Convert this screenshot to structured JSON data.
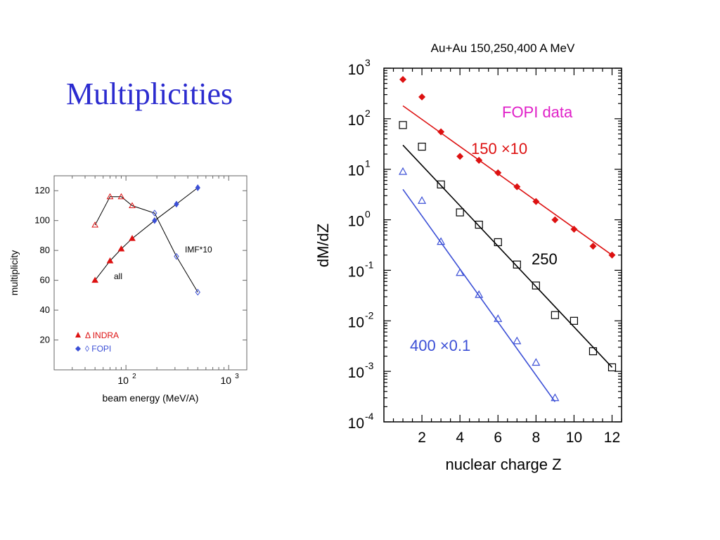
{
  "slide": {
    "title": "Multiplicities"
  },
  "colors": {
    "title": "#2b2bcf",
    "red": "#dd1111",
    "black": "#000000",
    "blue": "#3b4fd6",
    "magenta": "#e020c8"
  },
  "chart_data": [
    {
      "type": "line",
      "xlabel": "beam energy (MeV/A)",
      "ylabel": "multiplicity",
      "xscale": "log",
      "xlim": [
        20,
        1500
      ],
      "ylim": [
        0,
        130
      ],
      "x_tick_labels": [
        "10^2",
        "10^3"
      ],
      "y_tick_labels": [
        "20",
        "40",
        "60",
        "80",
        "100",
        "120"
      ],
      "legend": {
        "position": "bottom-left",
        "items": [
          {
            "marker": "▲",
            "label": "Δ INDRA",
            "color": "#dd1111"
          },
          {
            "marker": "◆",
            "label": "◊ FOPI",
            "color": "#3b4fd6"
          }
        ]
      },
      "annotations": [
        "all",
        "IMF*10"
      ],
      "series": [
        {
          "curve": "all",
          "points": [
            {
              "x": 50,
              "y": 60,
              "source": "INDRA",
              "style": "filled"
            },
            {
              "x": 70,
              "y": 73,
              "source": "INDRA",
              "style": "filled"
            },
            {
              "x": 90,
              "y": 81,
              "source": "INDRA",
              "style": "filled"
            },
            {
              "x": 115,
              "y": 88,
              "source": "INDRA",
              "style": "filled"
            },
            {
              "x": 190,
              "y": 100,
              "source": "FOPI",
              "style": "filled"
            },
            {
              "x": 310,
              "y": 111,
              "source": "FOPI",
              "style": "filled"
            },
            {
              "x": 500,
              "y": 122,
              "source": "FOPI",
              "style": "filled"
            }
          ]
        },
        {
          "curve": "IMF*10",
          "points": [
            {
              "x": 50,
              "y": 97,
              "source": "INDRA",
              "style": "open"
            },
            {
              "x": 70,
              "y": 116,
              "source": "INDRA",
              "style": "open"
            },
            {
              "x": 90,
              "y": 116,
              "source": "INDRA",
              "style": "open"
            },
            {
              "x": 115,
              "y": 110,
              "source": "INDRA",
              "style": "open"
            },
            {
              "x": 190,
              "y": 105,
              "source": "FOPI",
              "style": "open"
            },
            {
              "x": 310,
              "y": 76,
              "source": "FOPI",
              "style": "open"
            },
            {
              "x": 500,
              "y": 52,
              "source": "FOPI",
              "style": "open"
            }
          ]
        }
      ]
    },
    {
      "type": "scatter",
      "title": "Au+Au 150,250,400 A MeV",
      "xlabel": "nuclear charge Z",
      "ylabel": "dM/dZ",
      "yscale": "log",
      "xlim": [
        0,
        12.5
      ],
      "ylim": [
        0.0001,
        1000
      ],
      "x_tick_labels": [
        "2",
        "4",
        "6",
        "8",
        "10",
        "12"
      ],
      "y_tick_exponents": [
        "-4",
        "-3",
        "-2",
        "-1",
        "0",
        "1",
        "2",
        "3"
      ],
      "y_tick_base": "10",
      "annotations": {
        "dataset": "FOPI data"
      },
      "series": [
        {
          "name": "150 ×10",
          "marker": "filled-diamond",
          "color": "#dd1111",
          "x": [
            1,
            2,
            3,
            4,
            5,
            6,
            7,
            8,
            9,
            10,
            11,
            12
          ],
          "y": [
            600,
            270,
            55,
            18,
            15,
            8.5,
            4.5,
            2.3,
            1.0,
            0.65,
            0.3,
            0.2
          ],
          "fit": {
            "x": [
              1,
              12
            ],
            "y": [
              180,
              0.2
            ]
          }
        },
        {
          "name": "250",
          "marker": "open-square",
          "color": "#000000",
          "x": [
            1,
            2,
            3,
            4,
            5,
            6,
            7,
            8,
            9,
            10,
            11,
            12
          ],
          "y": [
            75,
            28,
            5,
            1.4,
            0.8,
            0.36,
            0.13,
            0.05,
            0.013,
            0.01,
            0.0025,
            0.0012
          ],
          "fit": {
            "x": [
              1,
              12
            ],
            "y": [
              30,
              0.0012
            ]
          }
        },
        {
          "name": "400 ×0.1",
          "marker": "open-triangle",
          "color": "#3b4fd6",
          "x": [
            1,
            2,
            3,
            4,
            5,
            6,
            7,
            8,
            9
          ],
          "y": [
            9,
            2.4,
            0.37,
            0.09,
            0.033,
            0.011,
            0.004,
            0.0015,
            0.0003
          ],
          "fit": {
            "x": [
              1,
              9
            ],
            "y": [
              4,
              0.00025
            ]
          }
        }
      ]
    }
  ]
}
